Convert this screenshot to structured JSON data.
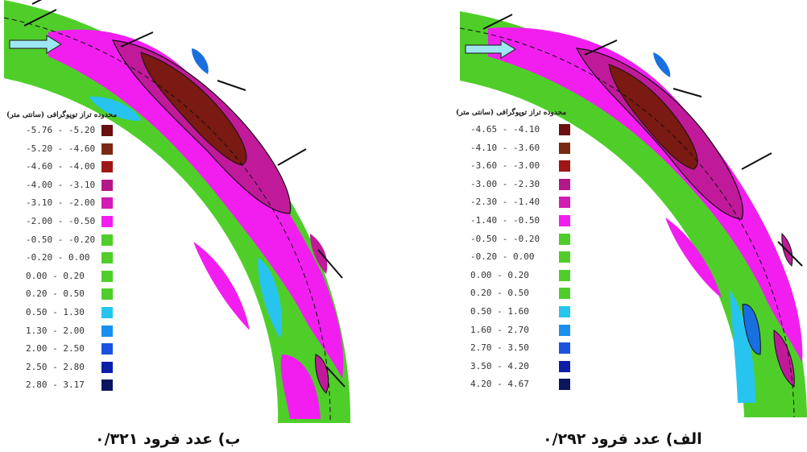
{
  "panels": [
    {
      "id": "b",
      "caption": "ب) عدد فرود ۰/۳۲۱",
      "legend_title": "محدوده تراز توپوگرافی (سانتی متر)",
      "legend": [
        {
          "label": "-5.76 - -5.20",
          "color": "#6b0f10"
        },
        {
          "label": "-5.20 - -4.60",
          "color": "#7a2a12"
        },
        {
          "label": "-4.60 - -4.00",
          "color": "#a01515"
        },
        {
          "label": "-4.00 - -3.10",
          "color": "#b5178a"
        },
        {
          "label": "-3.10 - -2.00",
          "color": "#d21cb5"
        },
        {
          "label": "-2.00 - -0.50",
          "color": "#f21ef0"
        },
        {
          "label": "-0.50 - -0.20",
          "color": "#4fce2a"
        },
        {
          "label": "-0.20 - 0.00",
          "color": "#4fce2a"
        },
        {
          "label": "0.00 - 0.20",
          "color": "#4fce2a"
        },
        {
          "label": "0.20 - 0.50",
          "color": "#4fce2a"
        },
        {
          "label": "0.50 - 1.30",
          "color": "#27c4f0"
        },
        {
          "label": "1.30 - 2.00",
          "color": "#1a8ff0"
        },
        {
          "label": "2.00 - 2.50",
          "color": "#1c52e0"
        },
        {
          "label": "2.50 - 2.80",
          "color": "#0d1fa8"
        },
        {
          "label": "2.80 - 3.17",
          "color": "#0b1560"
        }
      ]
    },
    {
      "id": "a",
      "caption": "الف) عدد فرود ۰/۲۹۲",
      "legend_title": "محدوده تراز توپوگرافی (سانتی متر)",
      "legend": [
        {
          "label": "-4.65 - -4.10",
          "color": "#6b0f10"
        },
        {
          "label": "-4.10 - -3.60",
          "color": "#7a2a12"
        },
        {
          "label": "-3.60 - -3.00",
          "color": "#a01515"
        },
        {
          "label": "-3.00 - -2.30",
          "color": "#b5178a"
        },
        {
          "label": "-2.30 - -1.40",
          "color": "#d21cb5"
        },
        {
          "label": "-1.40 - -0.50",
          "color": "#f21ef0"
        },
        {
          "label": "-0.50 - -0.20",
          "color": "#4fce2a"
        },
        {
          "label": "-0.20 - 0.00",
          "color": "#4fce2a"
        },
        {
          "label": "0.00 - 0.20",
          "color": "#4fce2a"
        },
        {
          "label": "0.20 - 0.50",
          "color": "#4fce2a"
        },
        {
          "label": "0.50 - 1.60",
          "color": "#27c4f0"
        },
        {
          "label": "1.60 - 2.70",
          "color": "#1a8ff0"
        },
        {
          "label": "2.70 - 3.50",
          "color": "#1c52e0"
        },
        {
          "label": "3.50 - 4.20",
          "color": "#0d1fa8"
        },
        {
          "label": "4.20 - 4.67",
          "color": "#0b1560"
        }
      ]
    }
  ],
  "colors": {
    "channel_green": "#4fce2a",
    "scour_magenta": "#f21ef0",
    "scour_purple": "#c01a9a",
    "scour_brown": "#7a1a12",
    "deposit_blue": "#27c4f0",
    "deposit_deep": "#1a6fe0",
    "contour_line": "#111111"
  }
}
